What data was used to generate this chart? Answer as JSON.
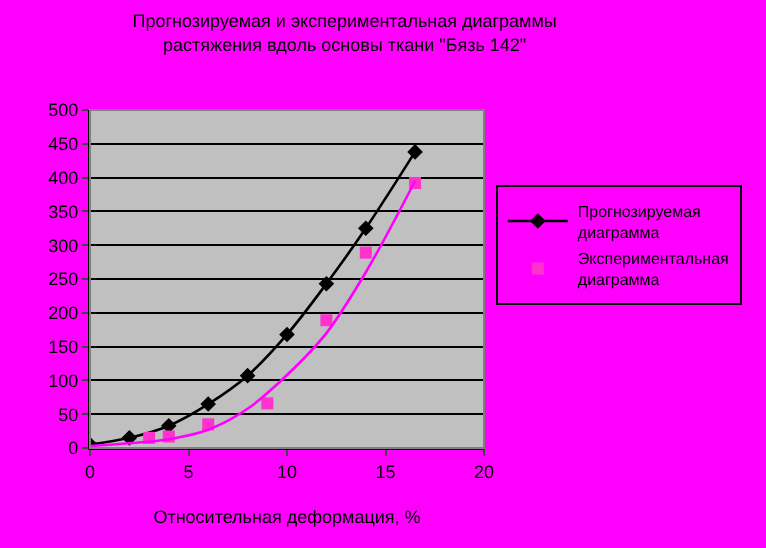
{
  "chart_data": {
    "type": "line",
    "title": "Прогнозируемая и экспериментальная диаграммы растяжения вдоль основы ткани \"Бязь 142\"",
    "xlabel": "Относительная деформация, %",
    "xlim": [
      0,
      20
    ],
    "xticks": [
      0,
      5,
      10,
      15,
      20
    ],
    "ylim": [
      0,
      500
    ],
    "yticks": [
      0,
      50,
      100,
      150,
      200,
      250,
      300,
      350,
      400,
      450,
      500
    ],
    "grid": "y",
    "legend": "right",
    "series": [
      {
        "name": "Прогнозируемая диаграмма",
        "color": "#000000",
        "marker": "diamond",
        "x": [
          0,
          2,
          4,
          6,
          8,
          10,
          12,
          14,
          16.5
        ],
        "values": [
          5,
          15,
          33,
          65,
          107,
          168,
          243,
          325,
          438
        ]
      },
      {
        "name": "Экспериментальная диаграмма",
        "type": "scatter",
        "color": "#ff33cc",
        "marker": "square",
        "x": [
          3,
          4,
          6,
          9,
          12,
          14,
          16.5
        ],
        "values": [
          15,
          17,
          35,
          66,
          189,
          289,
          392
        ]
      },
      {
        "color": "#ff00ff",
        "marker": "none",
        "x": [
          0,
          2,
          4,
          6,
          8,
          10,
          12,
          14,
          16.5
        ],
        "values": [
          3,
          7,
          13,
          27,
          58,
          108,
          170,
          260,
          395
        ]
      }
    ]
  }
}
